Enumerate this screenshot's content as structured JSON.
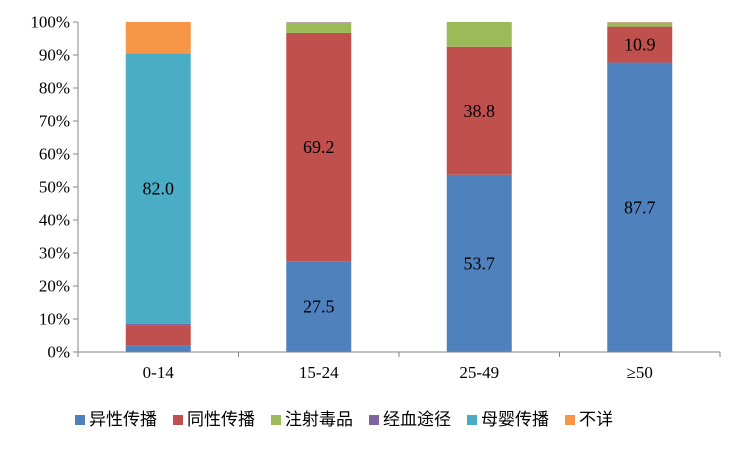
{
  "chart_data": {
    "type": "bar",
    "stacked": true,
    "percent_axis": true,
    "categories": [
      "0-14",
      "15-24",
      "25-49",
      "≥50"
    ],
    "series": [
      {
        "name": "异性传播",
        "color": "#4F81BD",
        "values": [
          2.0,
          27.5,
          53.7,
          87.7
        ]
      },
      {
        "name": "同性传播",
        "color": "#C0504D",
        "values": [
          6.0,
          69.2,
          38.8,
          10.9
        ]
      },
      {
        "name": "注射毒品",
        "color": "#9BBB59",
        "values": [
          0.0,
          3.0,
          7.5,
          1.2
        ]
      },
      {
        "name": "经血途径",
        "color": "#8064A2",
        "values": [
          0.5,
          0.1,
          0.0,
          0.1
        ]
      },
      {
        "name": "母婴传播",
        "color": "#4BACC6",
        "values": [
          82.0,
          0.1,
          0.0,
          0.0
        ]
      },
      {
        "name": "不详",
        "color": "#F79646",
        "values": [
          9.5,
          0.1,
          0.0,
          0.1
        ]
      }
    ],
    "data_labels": [
      {
        "category": "0-14",
        "series": "母婴传播",
        "text": "82.0"
      },
      {
        "category": "15-24",
        "series": "异性传播",
        "text": "27.5"
      },
      {
        "category": "15-24",
        "series": "同性传播",
        "text": "69.2"
      },
      {
        "category": "25-49",
        "series": "异性传播",
        "text": "53.7"
      },
      {
        "category": "25-49",
        "series": "同性传播",
        "text": "38.8"
      },
      {
        "category": "≥50",
        "series": "异性传播",
        "text": "87.7"
      },
      {
        "category": "≥50",
        "series": "同性传播",
        "text": "10.9"
      }
    ],
    "y_ticks": [
      "0%",
      "10%",
      "20%",
      "30%",
      "40%",
      "50%",
      "60%",
      "70%",
      "80%",
      "90%",
      "100%"
    ],
    "ylim": [
      0,
      100
    ],
    "grid": false,
    "legend_position": "bottom"
  }
}
